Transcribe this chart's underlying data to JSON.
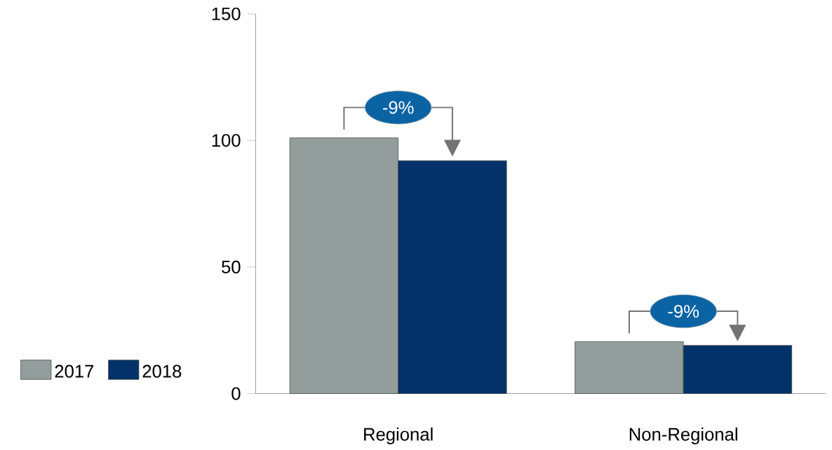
{
  "chart_data": {
    "type": "bar",
    "categories": [
      "Regional",
      "Non-Regional"
    ],
    "series": [
      {
        "name": "2017",
        "color": "#939e9c",
        "values": [
          101,
          20.5
        ]
      },
      {
        "name": "2018",
        "color": "#033169",
        "values": [
          92,
          19
        ]
      }
    ],
    "ylim": [
      0,
      150
    ],
    "yticks": [
      0,
      50,
      100,
      150
    ],
    "grid": false,
    "legend": "bottom left",
    "annotations": [
      "-9%",
      "-9%"
    ]
  }
}
